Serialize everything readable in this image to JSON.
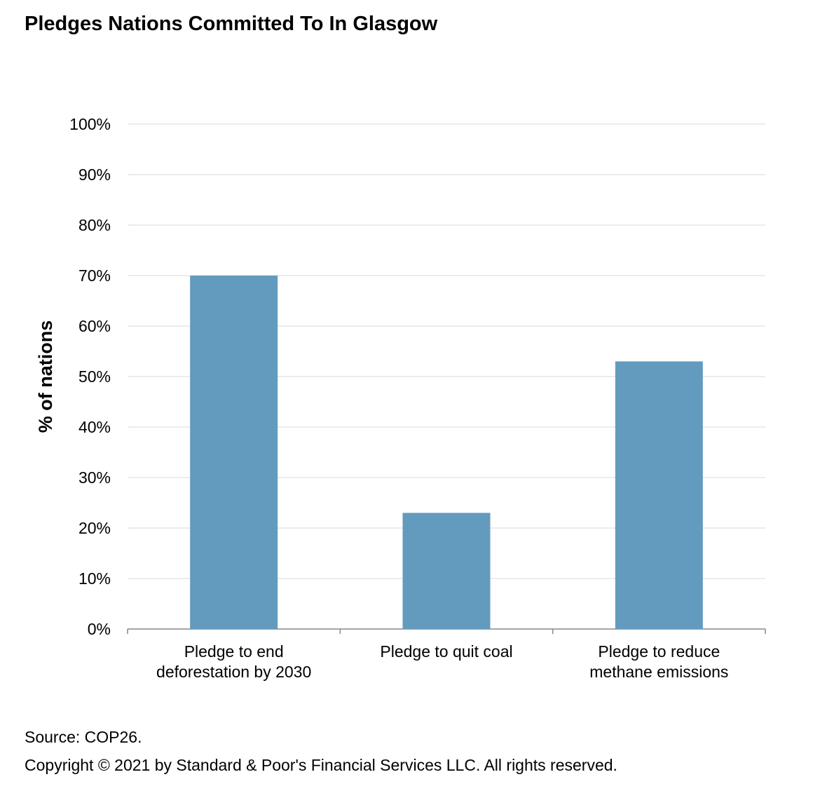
{
  "chart_data": {
    "type": "bar",
    "title": "Pledges Nations Committed To In Glasgow",
    "xlabel": "",
    "ylabel": "% of nations",
    "ylim": [
      0,
      100
    ],
    "yticks": [
      "0%",
      "10%",
      "20%",
      "30%",
      "40%",
      "50%",
      "60%",
      "70%",
      "80%",
      "90%",
      "100%"
    ],
    "categories": [
      [
        "Pledge to end",
        "deforestation by 2030"
      ],
      [
        "Pledge to quit coal"
      ],
      [
        "Pledge to reduce",
        "methane emissions"
      ]
    ],
    "values": [
      70,
      23,
      53
    ],
    "grid": true,
    "bar_color": "#639bbf"
  },
  "footer": {
    "source": "Source:  COP26.",
    "copyright": "Copyright © 2021 by Standard & Poor's Financial Services LLC. All rights reserved."
  }
}
